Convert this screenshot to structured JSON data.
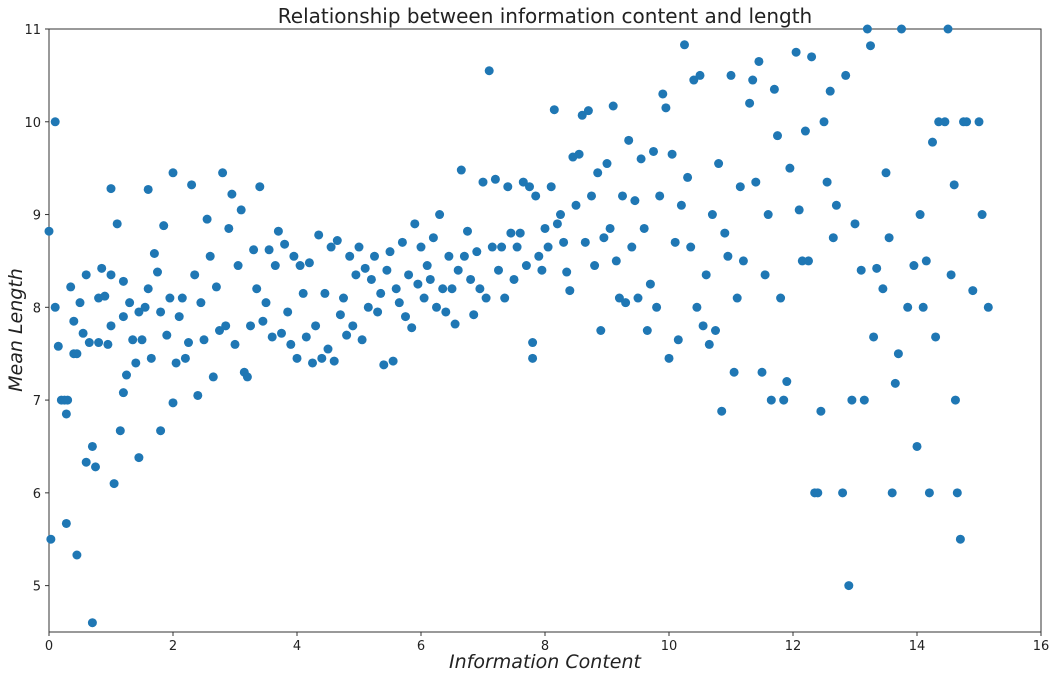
{
  "chart_data": {
    "type": "scatter",
    "title": "Relationship between information content and length",
    "x_label": "Information Content",
    "y_label": "Mean Length",
    "color": "#1f77b4",
    "grid": false,
    "xlim": [
      0,
      16
    ],
    "ylim": [
      4.5,
      11
    ],
    "xticks": [
      0,
      2,
      4,
      6,
      8,
      10,
      12,
      14,
      16
    ],
    "yticks": [
      5,
      6,
      7,
      8,
      9,
      10,
      11
    ],
    "x": [
      0,
      0.03,
      0.1,
      0.1,
      0.15,
      0.2,
      0.25,
      0.28,
      0.3,
      0.28,
      0.35,
      0.4,
      0.4,
      0.45,
      0.45,
      0.5,
      0.55,
      0.6,
      0.6,
      0.65,
      0.7,
      0.7,
      0.75,
      0.8,
      0.8,
      0.85,
      0.9,
      0.95,
      1.0,
      1.0,
      1.0,
      1.05,
      1.1,
      1.15,
      1.2,
      1.2,
      1.2,
      1.25,
      1.3,
      1.35,
      1.4,
      1.45,
      1.45,
      1.5,
      1.55,
      1.6,
      1.6,
      1.65,
      1.7,
      1.75,
      1.8,
      1.8,
      1.85,
      1.9,
      1.95,
      2.0,
      2.0,
      2.05,
      2.1,
      2.15,
      2.2,
      2.25,
      2.3,
      2.35,
      2.4,
      2.45,
      2.5,
      2.55,
      2.6,
      2.65,
      2.7,
      2.75,
      2.8,
      2.85,
      2.9,
      2.95,
      3.0,
      3.05,
      3.1,
      3.15,
      3.2,
      3.25,
      3.3,
      3.35,
      3.4,
      3.45,
      3.5,
      3.55,
      3.6,
      3.65,
      3.7,
      3.75,
      3.8,
      3.85,
      3.9,
      3.95,
      4.0,
      4.05,
      4.1,
      4.15,
      4.2,
      4.25,
      4.3,
      4.35,
      4.4,
      4.45,
      4.5,
      4.55,
      4.6,
      4.65,
      4.7,
      4.75,
      4.8,
      4.85,
      4.9,
      4.95,
      5.0,
      5.05,
      5.1,
      5.15,
      5.2,
      5.25,
      5.3,
      5.35,
      5.4,
      5.45,
      5.5,
      5.55,
      5.6,
      5.65,
      5.7,
      5.75,
      5.8,
      5.85,
      5.9,
      5.95,
      6.0,
      6.05,
      6.1,
      6.15,
      6.2,
      6.25,
      6.3,
      6.35,
      6.4,
      6.45,
      6.5,
      6.55,
      6.6,
      6.65,
      6.7,
      6.75,
      6.8,
      6.85,
      6.9,
      6.95,
      7.0,
      7.05,
      7.1,
      7.15,
      7.2,
      7.25,
      7.3,
      7.35,
      7.4,
      7.45,
      7.5,
      7.55,
      7.6,
      7.65,
      7.7,
      7.75,
      7.8,
      7.8,
      7.85,
      7.9,
      7.95,
      8.0,
      8.05,
      8.1,
      8.15,
      8.2,
      8.25,
      8.3,
      8.35,
      8.4,
      8.45,
      8.5,
      8.55,
      8.6,
      8.65,
      8.7,
      8.75,
      8.8,
      8.85,
      8.9,
      8.95,
      9.0,
      9.05,
      9.1,
      9.15,
      9.2,
      9.25,
      9.3,
      9.35,
      9.4,
      9.45,
      9.5,
      9.55,
      9.6,
      9.65,
      9.7,
      9.75,
      9.8,
      9.85,
      9.9,
      9.95,
      10.0,
      10.05,
      10.1,
      10.15,
      10.2,
      10.25,
      10.3,
      10.35,
      10.4,
      10.45,
      10.5,
      10.55,
      10.6,
      10.65,
      10.7,
      10.75,
      10.8,
      10.85,
      10.9,
      10.95,
      11.0,
      11.05,
      11.1,
      11.15,
      11.2,
      11.3,
      11.35,
      11.4,
      11.45,
      11.5,
      11.55,
      11.6,
      11.65,
      11.7,
      11.75,
      11.8,
      11.85,
      11.9,
      11.95,
      12.05,
      12.1,
      12.15,
      12.2,
      12.25,
      12.3,
      12.35,
      12.4,
      12.45,
      12.5,
      12.55,
      12.6,
      12.65,
      12.7,
      12.8,
      12.85,
      12.9,
      12.95,
      13.0,
      13.1,
      13.15,
      13.2,
      13.25,
      13.3,
      13.35,
      13.45,
      13.5,
      13.55,
      13.6,
      13.65,
      13.7,
      13.75,
      13.85,
      13.95,
      14.0,
      14.05,
      14.1,
      14.15,
      14.2,
      14.25,
      14.3,
      14.35,
      14.45,
      14.5,
      14.55,
      14.6,
      14.62,
      14.65,
      14.7,
      14.75,
      14.8,
      14.9,
      15.0,
      15.05,
      15.15
    ],
    "values": [
      8.82,
      5.5,
      10,
      8,
      7.58,
      7,
      7,
      6.85,
      7,
      5.67,
      8.22,
      7.5,
      7.85,
      7.5,
      5.33,
      8.05,
      7.72,
      6.33,
      8.35,
      7.62,
      6.5,
      4.6,
      6.28,
      7.62,
      8.1,
      8.42,
      8.12,
      7.6,
      8.35,
      7.8,
      9.28,
      6.1,
      8.9,
      6.67,
      7.9,
      8.28,
      7.08,
      7.27,
      8.05,
      7.65,
      7.4,
      6.38,
      7.95,
      7.65,
      8.0,
      9.27,
      8.2,
      7.45,
      8.58,
      8.38,
      7.95,
      6.67,
      8.88,
      7.7,
      8.1,
      6.97,
      9.45,
      7.4,
      7.9,
      8.1,
      7.45,
      7.62,
      9.32,
      8.35,
      7.05,
      8.05,
      7.65,
      8.95,
      8.55,
      7.25,
      8.22,
      7.75,
      9.45,
      7.8,
      8.85,
      9.22,
      7.6,
      8.45,
      9.05,
      7.3,
      7.25,
      7.8,
      8.62,
      8.2,
      9.3,
      7.85,
      8.05,
      8.62,
      7.68,
      8.45,
      8.82,
      7.72,
      8.68,
      7.95,
      7.6,
      8.55,
      7.45,
      8.45,
      8.15,
      7.68,
      8.48,
      7.4,
      7.8,
      8.78,
      7.45,
      8.15,
      7.55,
      8.65,
      7.42,
      8.72,
      7.92,
      8.1,
      7.7,
      8.55,
      7.8,
      8.35,
      8.65,
      7.65,
      8.42,
      8.0,
      8.3,
      8.55,
      7.95,
      8.15,
      7.38,
      8.4,
      8.6,
      7.42,
      8.2,
      8.05,
      8.7,
      7.9,
      8.35,
      7.78,
      8.9,
      8.25,
      8.65,
      8.1,
      8.45,
      8.3,
      8.75,
      8.0,
      9.0,
      8.2,
      7.95,
      8.55,
      8.2,
      7.82,
      8.4,
      9.48,
      8.55,
      8.82,
      8.3,
      7.92,
      8.6,
      8.2,
      9.35,
      8.1,
      10.55,
      8.65,
      9.38,
      8.4,
      8.65,
      8.1,
      9.3,
      8.8,
      8.3,
      8.65,
      8.8,
      9.35,
      8.45,
      9.3,
      7.62,
      7.45,
      9.2,
      8.55,
      8.4,
      8.85,
      8.65,
      9.3,
      10.13,
      8.9,
      9.0,
      8.7,
      8.38,
      8.18,
      9.62,
      9.1,
      9.65,
      10.07,
      8.7,
      10.12,
      9.2,
      8.45,
      9.45,
      7.75,
      8.75,
      9.55,
      8.85,
      10.17,
      8.5,
      8.1,
      9.2,
      8.05,
      9.8,
      8.65,
      9.15,
      8.1,
      9.6,
      8.85,
      7.75,
      8.25,
      9.68,
      8.0,
      9.2,
      10.3,
      10.15,
      7.45,
      9.65,
      8.7,
      7.65,
      9.1,
      10.83,
      9.4,
      8.65,
      10.45,
      8.0,
      10.5,
      7.8,
      8.35,
      7.6,
      9.0,
      7.75,
      9.55,
      6.88,
      8.8,
      8.55,
      10.5,
      7.3,
      8.1,
      9.3,
      8.5,
      10.2,
      10.45,
      9.35,
      10.65,
      7.3,
      8.35,
      9.0,
      7.0,
      10.35,
      9.85,
      8.1,
      7.0,
      7.2,
      9.5,
      10.75,
      9.05,
      8.5,
      9.9,
      8.5,
      10.7,
      6.0,
      6.0,
      6.88,
      10.0,
      9.35,
      10.33,
      8.75,
      9.1,
      6.0,
      10.5,
      5.0,
      7.0,
      8.9,
      8.4,
      7.0,
      11.0,
      10.82,
      7.68,
      8.42,
      8.2,
      9.45,
      8.75,
      6.0,
      7.18,
      7.5,
      11.0,
      8.0,
      8.45,
      6.5,
      9.0,
      8.0,
      8.5,
      6.0,
      9.78,
      7.68,
      10.0,
      10.0,
      11.0,
      8.35,
      9.32,
      7.0,
      6.0,
      5.5,
      10.0,
      10.0,
      8.18,
      10.0,
      9.0,
      8.0
    ]
  }
}
